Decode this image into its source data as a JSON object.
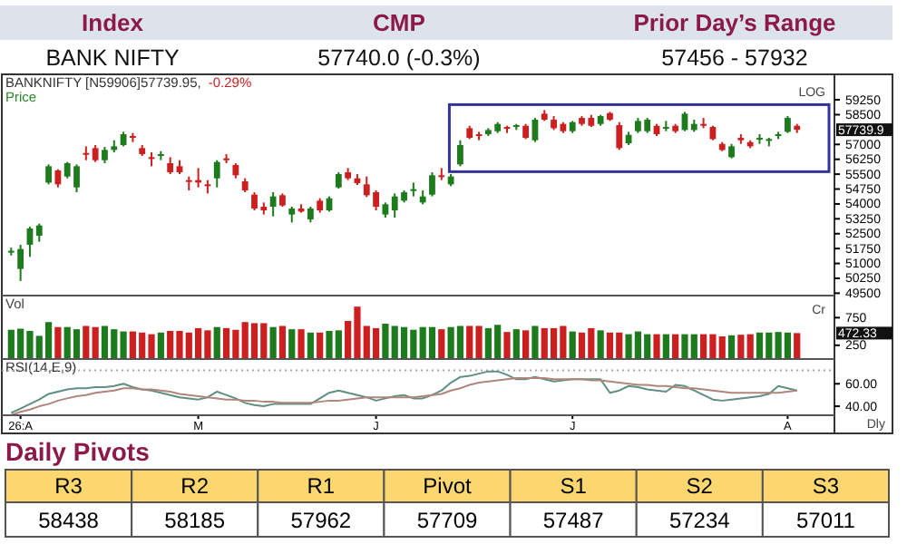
{
  "chart_data": [
    {
      "type": "other",
      "categories": [
        "Index",
        "CMP",
        "Prior Day’s Range"
      ],
      "annotations": [
        "BANK NIFTY",
        "57740.0 (-0.3%)",
        "57456 - 57932"
      ]
    },
    {
      "type": "candlestick",
      "title": "BANKNIFTY [N59906]57739.95,",
      "subtitle": "-0.29%",
      "ylabel": "Price",
      "annotations": [
        "LOG",
        "57739.9"
      ],
      "categories": [
        null,
        null,
        null,
        null,
        null,
        null,
        null,
        null,
        null,
        null,
        null,
        null,
        null,
        null,
        null,
        null,
        null,
        null,
        null,
        null,
        null,
        null,
        null,
        null,
        null,
        null,
        null,
        null,
        null,
        null,
        null,
        null,
        null,
        null,
        null,
        null,
        null,
        null,
        null,
        null,
        null,
        null,
        null,
        null,
        null,
        null,
        null,
        null,
        null,
        null,
        null,
        null,
        null,
        null,
        null,
        null,
        null,
        null,
        null,
        null,
        null,
        null,
        null,
        null,
        null,
        null,
        null,
        null,
        null,
        null,
        null,
        null,
        null,
        null,
        null,
        null,
        null,
        null,
        null,
        null,
        null,
        null,
        null,
        null,
        null
      ],
      "ohlc": [
        [
          51600,
          51800,
          51400,
          51637
        ],
        [
          50724,
          51942,
          50115,
          51729
        ],
        [
          51942,
          52855,
          51333,
          52764
        ],
        [
          52398,
          53007,
          52094,
          52916
        ],
        [
          55078,
          55992,
          54987,
          55900
        ],
        [
          55687,
          55748,
          54834,
          54987
        ],
        [
          55383,
          56114,
          55291,
          56053
        ],
        [
          54834,
          55992,
          54591,
          55900
        ],
        [
          56570,
          56905,
          56205,
          56479
        ],
        [
          56814,
          56966,
          56114,
          56205
        ],
        [
          56205,
          56875,
          56053,
          56722
        ],
        [
          56722,
          57210,
          56601,
          56905
        ],
        [
          56966,
          57636,
          56905,
          57514
        ],
        [
          57423,
          57575,
          57118,
          57331
        ],
        [
          56814,
          56966,
          56418,
          56509
        ],
        [
          56357,
          56601,
          55900,
          56266
        ],
        [
          56448,
          56662,
          56205,
          56509
        ],
        [
          56053,
          56357,
          55504,
          55596
        ],
        [
          55900,
          56205,
          55504,
          55596
        ],
        [
          55200,
          55383,
          54682,
          55139
        ],
        [
          55200,
          55809,
          54834,
          55078
        ],
        [
          54987,
          55200,
          54530,
          54895
        ],
        [
          55291,
          56205,
          54834,
          56114
        ],
        [
          56296,
          56509,
          56053,
          56205
        ],
        [
          55961,
          56053,
          55291,
          55444
        ],
        [
          55139,
          55291,
          54591,
          54682
        ],
        [
          54469,
          54591,
          53677,
          53769
        ],
        [
          53860,
          54073,
          53464,
          53677
        ],
        [
          53860,
          54591,
          53373,
          54378
        ],
        [
          54439,
          54530,
          53860,
          53921
        ],
        [
          53464,
          53860,
          53069,
          53769
        ],
        [
          53769,
          53982,
          53556,
          53616
        ],
        [
          53221,
          53860,
          53069,
          53769
        ],
        [
          54165,
          54286,
          53556,
          53677
        ],
        [
          53677,
          54378,
          53616,
          54286
        ],
        [
          54834,
          55596,
          54774,
          55504
        ],
        [
          55596,
          55809,
          55200,
          55291
        ],
        [
          55291,
          55504,
          54956,
          55048
        ],
        [
          54987,
          55383,
          54347,
          54439
        ],
        [
          54591,
          54682,
          53677,
          53860
        ],
        [
          53464,
          54073,
          53312,
          53982
        ],
        [
          53677,
          54530,
          53312,
          54378
        ],
        [
          54165,
          54682,
          54073,
          54591
        ],
        [
          54652,
          55078,
          54378,
          54743
        ],
        [
          54073,
          54682,
          53982,
          54378
        ],
        [
          54469,
          55596,
          54378,
          55444
        ],
        [
          55444,
          55809,
          55200,
          55352
        ],
        [
          54987,
          55504,
          54895,
          55383
        ],
        [
          55992,
          57210,
          55900,
          56966
        ],
        [
          57819,
          57940,
          57271,
          57331
        ],
        [
          57514,
          57636,
          57210,
          57423
        ],
        [
          57514,
          57819,
          57423,
          57727
        ],
        [
          57666,
          58123,
          57575,
          58032
        ],
        [
          57880,
          57940,
          57575,
          57788
        ],
        [
          57910,
          58032,
          57727,
          57971
        ],
        [
          57940,
          58032,
          57271,
          57331
        ],
        [
          57210,
          58336,
          57118,
          58245
        ],
        [
          58550,
          58732,
          58184,
          58245
        ],
        [
          58245,
          58428,
          57727,
          57819
        ],
        [
          58032,
          58123,
          57575,
          57666
        ],
        [
          57666,
          58184,
          57575,
          58123
        ],
        [
          58336,
          58428,
          57940,
          58032
        ],
        [
          58336,
          58489,
          57880,
          57940
        ],
        [
          58032,
          58489,
          57940,
          58428
        ],
        [
          58580,
          58641,
          58184,
          58245
        ],
        [
          57971,
          58123,
          56722,
          56814
        ],
        [
          57058,
          57636,
          56966,
          57484
        ],
        [
          57666,
          58336,
          57575,
          58184
        ],
        [
          57666,
          58336,
          57575,
          58245
        ],
        [
          57940,
          58032,
          57423,
          57514
        ],
        [
          57788,
          58184,
          57666,
          57880
        ],
        [
          57940,
          58032,
          57575,
          57666
        ],
        [
          57727,
          58641,
          57666,
          58550
        ],
        [
          57727,
          58245,
          57636,
          58032
        ],
        [
          58032,
          58336,
          57819,
          57971
        ],
        [
          57880,
          57940,
          57210,
          57271
        ],
        [
          57027,
          57118,
          56662,
          56722
        ],
        [
          56357,
          57027,
          56296,
          56905
        ],
        [
          57331,
          57514,
          57027,
          57210
        ],
        [
          57118,
          57210,
          56814,
          56905
        ],
        [
          57271,
          57514,
          57027,
          57331
        ],
        [
          57210,
          57331,
          56905,
          57271
        ],
        [
          57423,
          57636,
          57271,
          57514
        ],
        [
          57636,
          58428,
          57575,
          58336
        ],
        [
          57940,
          58032,
          57575,
          57740
        ]
      ],
      "colors": [
        "#1d7a1d",
        "#1d7a1d",
        "#1d7a1d",
        "#1d7a1d",
        "#1d7a1d",
        "#cc1f1f",
        "#1d7a1d",
        "#1d7a1d",
        "#cc1f1f",
        "#cc1f1f",
        "#1d7a1d",
        "#1d7a1d",
        "#1d7a1d",
        "#cc1f1f",
        "#cc1f1f",
        "#cc1f1f",
        "#1d7a1d",
        "#cc1f1f",
        "#cc1f1f",
        "#cc1f1f",
        "#cc1f1f",
        "#cc1f1f",
        "#1d7a1d",
        "#cc1f1f",
        "#cc1f1f",
        "#cc1f1f",
        "#cc1f1f",
        "#cc1f1f",
        "#1d7a1d",
        "#cc1f1f",
        "#1d7a1d",
        "#cc1f1f",
        "#1d7a1d",
        "#cc1f1f",
        "#1d7a1d",
        "#1d7a1d",
        "#cc1f1f",
        "#cc1f1f",
        "#cc1f1f",
        "#cc1f1f",
        "#1d7a1d",
        "#1d7a1d",
        "#1d7a1d",
        "#1d7a1d",
        "#1d7a1d",
        "#1d7a1d",
        "#cc1f1f",
        "#1d7a1d",
        "#1d7a1d",
        "#cc1f1f",
        "#cc1f1f",
        "#1d7a1d",
        "#1d7a1d",
        "#cc1f1f",
        "#1d7a1d",
        "#cc1f1f",
        "#1d7a1d",
        "#cc1f1f",
        "#cc1f1f",
        "#cc1f1f",
        "#1d7a1d",
        "#cc1f1f",
        "#cc1f1f",
        "#1d7a1d",
        "#cc1f1f",
        "#cc1f1f",
        "#1d7a1d",
        "#1d7a1d",
        "#1d7a1d",
        "#cc1f1f",
        "#1d7a1d",
        "#cc1f1f",
        "#1d7a1d",
        "#1d7a1d",
        "#cc1f1f",
        "#cc1f1f",
        "#cc1f1f",
        "#1d7a1d",
        "#cc1f1f",
        "#cc1f1f",
        "#1d7a1d",
        "#1d7a1d",
        "#1d7a1d",
        "#1d7a1d",
        "#cc1f1f"
      ],
      "ylim": [
        49380,
        60350
      ],
      "yticks": [
        49500,
        50250,
        51000,
        51750,
        52500,
        53250,
        54000,
        54750,
        55500,
        56250,
        57000,
        58500,
        59250
      ],
      "tick_labels": "y"
    },
    {
      "type": "bar",
      "ylabel": "Vol",
      "annotations": [
        "Cr",
        "472.33"
      ],
      "categories": [
        null,
        null,
        null,
        null,
        null,
        null,
        null,
        null,
        null,
        null,
        null,
        null,
        null,
        null,
        null,
        null,
        null,
        null,
        null,
        null,
        null,
        null,
        null,
        null,
        null,
        null,
        null,
        null,
        null,
        null,
        null,
        null,
        null,
        null,
        null,
        null,
        null,
        null,
        null,
        null,
        null,
        null,
        null,
        null,
        null,
        null,
        null,
        null,
        null,
        null,
        null,
        null,
        null,
        null,
        null,
        null,
        null,
        null,
        null,
        null,
        null,
        null,
        null,
        null,
        null,
        null,
        null,
        null,
        null,
        null,
        null,
        null,
        null,
        null,
        null,
        null,
        null,
        null,
        null,
        null,
        null,
        null,
        null,
        null,
        null
      ],
      "values": [
        530,
        550,
        510,
        420,
        670,
        580,
        580,
        540,
        600,
        580,
        600,
        540,
        500,
        500,
        480,
        450,
        480,
        510,
        510,
        480,
        560,
        520,
        580,
        560,
        530,
        670,
        650,
        650,
        580,
        600,
        540,
        540,
        480,
        480,
        510,
        520,
        690,
        950,
        600,
        560,
        640,
        600,
        580,
        530,
        580,
        580,
        540,
        580,
        600,
        600,
        600,
        560,
        620,
        490,
        540,
        520,
        600,
        560,
        560,
        600,
        500,
        480,
        560,
        520,
        480,
        480,
        450,
        500,
        450,
        450,
        450,
        450,
        450,
        450,
        450,
        450,
        410,
        430,
        440,
        450,
        480,
        480,
        490,
        480,
        470
      ],
      "colors": [
        "#1d7a1d",
        "#1d7a1d",
        "#1d7a1d",
        "#1d7a1d",
        "#1d7a1d",
        "#cc1f1f",
        "#1d7a1d",
        "#1d7a1d",
        "#cc1f1f",
        "#cc1f1f",
        "#1d7a1d",
        "#1d7a1d",
        "#1d7a1d",
        "#cc1f1f",
        "#cc1f1f",
        "#cc1f1f",
        "#1d7a1d",
        "#cc1f1f",
        "#cc1f1f",
        "#cc1f1f",
        "#cc1f1f",
        "#cc1f1f",
        "#1d7a1d",
        "#cc1f1f",
        "#cc1f1f",
        "#cc1f1f",
        "#cc1f1f",
        "#cc1f1f",
        "#1d7a1d",
        "#cc1f1f",
        "#1d7a1d",
        "#cc1f1f",
        "#1d7a1d",
        "#cc1f1f",
        "#1d7a1d",
        "#1d7a1d",
        "#cc1f1f",
        "#cc1f1f",
        "#cc1f1f",
        "#cc1f1f",
        "#1d7a1d",
        "#1d7a1d",
        "#1d7a1d",
        "#1d7a1d",
        "#1d7a1d",
        "#1d7a1d",
        "#cc1f1f",
        "#1d7a1d",
        "#1d7a1d",
        "#cc1f1f",
        "#cc1f1f",
        "#1d7a1d",
        "#1d7a1d",
        "#cc1f1f",
        "#1d7a1d",
        "#cc1f1f",
        "#1d7a1d",
        "#cc1f1f",
        "#cc1f1f",
        "#cc1f1f",
        "#1d7a1d",
        "#cc1f1f",
        "#cc1f1f",
        "#1d7a1d",
        "#cc1f1f",
        "#cc1f1f",
        "#1d7a1d",
        "#1d7a1d",
        "#1d7a1d",
        "#cc1f1f",
        "#1d7a1d",
        "#cc1f1f",
        "#1d7a1d",
        "#1d7a1d",
        "#cc1f1f",
        "#cc1f1f",
        "#cc1f1f",
        "#1d7a1d",
        "#cc1f1f",
        "#cc1f1f",
        "#1d7a1d",
        "#1d7a1d",
        "#1d7a1d",
        "#1d7a1d",
        "#cc1f1f"
      ],
      "ylim": [
        0,
        1150
      ],
      "yticks": [
        250,
        750
      ],
      "tick_labels": "y"
    },
    {
      "type": "line",
      "title": "RSI(14,E,9)",
      "annotations": [
        "Dly"
      ],
      "ylim": [
        32,
        82
      ],
      "categories": [
        null,
        "26:A",
        null,
        null,
        null,
        null,
        null,
        null,
        null,
        null,
        null,
        null,
        null,
        null,
        null,
        null,
        null,
        null,
        null,
        null,
        "M",
        null,
        null,
        null,
        null,
        null,
        null,
        null,
        null,
        null,
        null,
        null,
        null,
        null,
        null,
        null,
        null,
        null,
        null,
        "J",
        null,
        null,
        null,
        null,
        null,
        null,
        null,
        null,
        null,
        null,
        null,
        null,
        null,
        null,
        null,
        null,
        null,
        null,
        null,
        null,
        "J",
        null,
        null,
        null,
        null,
        null,
        null,
        null,
        null,
        null,
        null,
        null,
        null,
        null,
        null,
        null,
        null,
        null,
        null,
        null,
        null,
        null,
        null,
        "A",
        null
      ],
      "yticks": [
        {
          "value": 40,
          "label": "40.00"
        },
        {
          "value": 60,
          "label": "60.00"
        }
      ],
      "ref_lines": [
        {
          "axis": "y",
          "value": 72,
          "color": "#aaaaaa",
          "line_style": "dotted"
        }
      ],
      "series": [
        {
          "color": "#5e8f80",
          "values": [
            34,
            38,
            42,
            46,
            51,
            53,
            55,
            56,
            56,
            57,
            57,
            58,
            60,
            57,
            55,
            54,
            52,
            50,
            48,
            47,
            46,
            48,
            53,
            50,
            47,
            43,
            41,
            40,
            42,
            42,
            42,
            42,
            42,
            47,
            52,
            54,
            52,
            50,
            48,
            45,
            47,
            49,
            50,
            47,
            47,
            50,
            54,
            61,
            66,
            67,
            69,
            71,
            71,
            68,
            64,
            64,
            66,
            64,
            62,
            63,
            64,
            64,
            64,
            64,
            52,
            54,
            58,
            57,
            55,
            54,
            53,
            59,
            58,
            54,
            50,
            46,
            45,
            46,
            47,
            48,
            49,
            51,
            58,
            56,
            54
          ]
        },
        {
          "color": "#b0867a",
          "values": [
            32,
            35,
            37,
            40,
            42,
            45,
            47,
            49,
            50,
            52,
            53,
            54,
            56,
            56,
            55,
            55,
            54,
            53,
            51,
            50,
            49,
            48,
            47,
            46,
            46,
            45,
            45,
            44,
            44,
            43,
            43,
            43,
            43,
            44,
            45,
            45,
            46,
            47,
            48,
            48,
            48,
            48,
            48,
            48,
            49,
            50,
            51,
            54,
            56,
            59,
            61,
            62,
            63,
            64,
            65,
            65,
            65,
            65,
            64,
            64,
            64,
            64,
            63,
            63,
            62,
            61,
            60,
            59,
            59,
            58,
            58,
            57,
            56,
            56,
            55,
            54,
            53,
            52,
            52,
            52,
            52,
            52,
            52,
            53,
            54
          ]
        }
      ]
    },
    {
      "type": "other",
      "title": "Daily Pivots",
      "categories": [
        "R3",
        "R2",
        "R1",
        "Pivot",
        "S1",
        "S2",
        "S3"
      ],
      "values": [
        58438,
        58185,
        57962,
        57709,
        57487,
        57234,
        57011
      ],
      "data_labels": true
    }
  ]
}
